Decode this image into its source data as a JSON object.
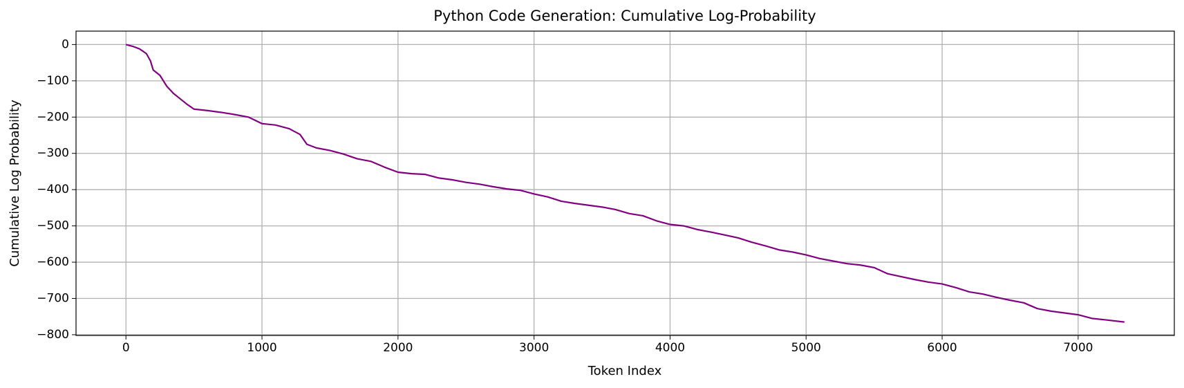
{
  "chart_data": {
    "type": "line",
    "title": "Python Code Generation: Cumulative Log-Probability",
    "x_label": "Token Index",
    "y_label": "Cumulative Log Probability",
    "x": [
      0,
      50,
      100,
      150,
      180,
      200,
      250,
      300,
      350,
      400,
      450,
      500,
      600,
      700,
      800,
      900,
      1000,
      1100,
      1200,
      1280,
      1330,
      1400,
      1500,
      1600,
      1700,
      1800,
      1900,
      2000,
      2100,
      2200,
      2300,
      2400,
      2500,
      2600,
      2700,
      2800,
      2900,
      3000,
      3100,
      3200,
      3300,
      3400,
      3500,
      3600,
      3700,
      3800,
      3900,
      4000,
      4100,
      4200,
      4300,
      4400,
      4500,
      4600,
      4700,
      4800,
      4900,
      5000,
      5100,
      5200,
      5300,
      5400,
      5500,
      5600,
      5700,
      5800,
      5900,
      6000,
      6100,
      6200,
      6300,
      6400,
      6500,
      6600,
      6700,
      6800,
      6900,
      7000,
      7100,
      7200,
      7340
    ],
    "series": [
      {
        "name": "Cumulative Log Probability",
        "color": "#800080",
        "values": [
          0,
          -5,
          -12,
          -25,
          -45,
          -70,
          -85,
          -115,
          -135,
          -150,
          -165,
          -178,
          -182,
          -187,
          -193,
          -200,
          -218,
          -222,
          -232,
          -248,
          -275,
          -285,
          -292,
          -302,
          -315,
          -322,
          -338,
          -352,
          -356,
          -358,
          -368,
          -373,
          -380,
          -385,
          -392,
          -398,
          -402,
          -412,
          -420,
          -432,
          -438,
          -443,
          -448,
          -455,
          -466,
          -472,
          -486,
          -496,
          -500,
          -510,
          -517,
          -525,
          -533,
          -545,
          -555,
          -566,
          -572,
          -580,
          -590,
          -597,
          -604,
          -608,
          -615,
          -632,
          -640,
          -648,
          -655,
          -660,
          -670,
          -682,
          -688,
          -697,
          -705,
          -712,
          -728,
          -735,
          -740,
          -745,
          -755,
          -759,
          -765
        ]
      }
    ],
    "xlim": [
      -367,
      7707
    ],
    "ylim": [
      -802,
      37
    ],
    "xticks": [
      0,
      1000,
      2000,
      3000,
      4000,
      5000,
      6000,
      7000
    ],
    "yticks": [
      0,
      {
        "value": -100,
        "label": "−100"
      },
      {
        "value": -200,
        "label": "−200"
      },
      {
        "value": -300,
        "label": "−300"
      },
      {
        "value": -400,
        "label": "−400"
      },
      {
        "value": -500,
        "label": "−500"
      },
      {
        "value": -600,
        "label": "−600"
      },
      {
        "value": -700,
        "label": "−700"
      },
      {
        "value": -800,
        "label": "−800"
      }
    ],
    "grid": true
  }
}
